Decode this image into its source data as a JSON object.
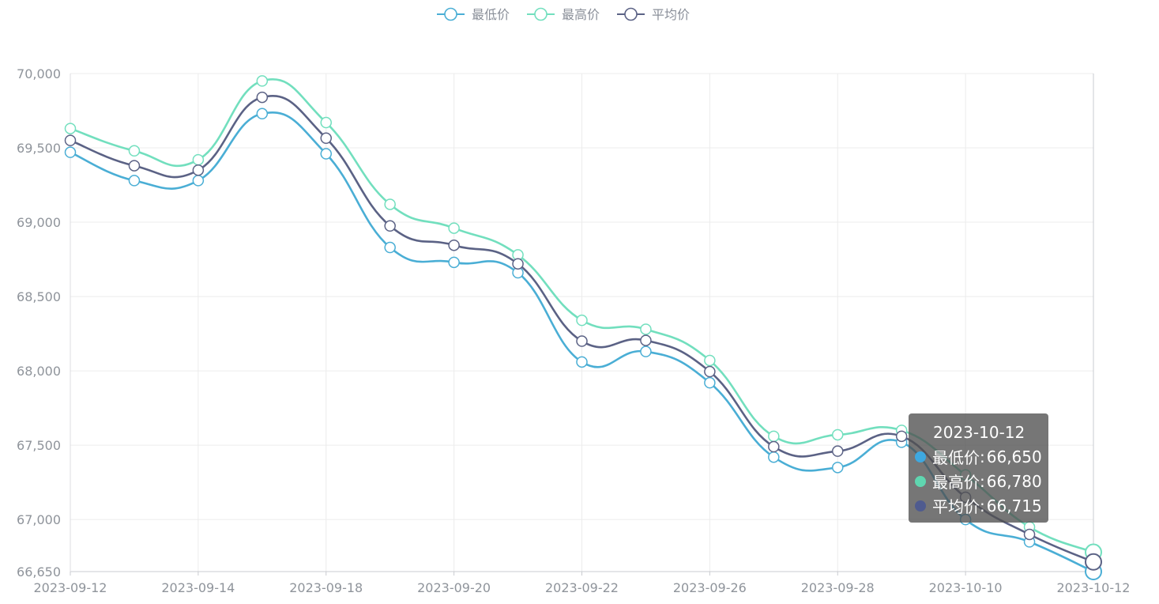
{
  "chart_data": {
    "type": "line",
    "x": [
      "2023-09-12",
      "2023-09-13",
      "2023-09-14",
      "2023-09-15",
      "2023-09-18",
      "2023-09-19",
      "2023-09-20",
      "2023-09-21",
      "2023-09-22",
      "2023-09-25",
      "2023-09-26",
      "2023-09-27",
      "2023-09-28",
      "2023-10-09",
      "2023-10-10",
      "2023-10-11",
      "2023-10-12"
    ],
    "x_tick_labels": [
      "2023-09-12",
      "2023-09-14",
      "2023-09-18",
      "2023-09-20",
      "2023-09-22",
      "2023-09-26",
      "2023-09-28",
      "2023-10-10",
      "2023-10-12"
    ],
    "y_tick_labels": [
      "66,650",
      "67,000",
      "67,500",
      "68,000",
      "68,500",
      "69,000",
      "69,500",
      "70,000"
    ],
    "ylim": [
      66650,
      70000
    ],
    "grid": true,
    "legend_position": "top-center",
    "series": [
      {
        "name": "最低价",
        "color": "#4aaed5",
        "values": [
          69470,
          69280,
          69280,
          69730,
          69460,
          68830,
          68730,
          68660,
          68060,
          68130,
          67920,
          67420,
          67350,
          67520,
          67000,
          66850,
          66650
        ]
      },
      {
        "name": "最高价",
        "color": "#72dfbe",
        "values": [
          69630,
          69480,
          69420,
          69950,
          69670,
          69120,
          68960,
          68780,
          68340,
          68280,
          68070,
          67560,
          67570,
          67600,
          67300,
          66950,
          66780
        ]
      },
      {
        "name": "平均价",
        "color": "#5b6285",
        "values": [
          69550,
          69380,
          69350,
          69840,
          69565,
          68975,
          68845,
          68720,
          68200,
          68205,
          67995,
          67490,
          67460,
          67560,
          67150,
          66900,
          66715
        ]
      }
    ],
    "tooltip": {
      "title": "2023-10-12",
      "rows": [
        {
          "label": "最低价",
          "value": "66,650",
          "color": "#3ea8e0"
        },
        {
          "label": "最高价",
          "value": "66,780",
          "color": "#5fd6b0"
        },
        {
          "label": "平均价",
          "value": "66,715",
          "color": "#4f5b8f"
        }
      ]
    }
  }
}
